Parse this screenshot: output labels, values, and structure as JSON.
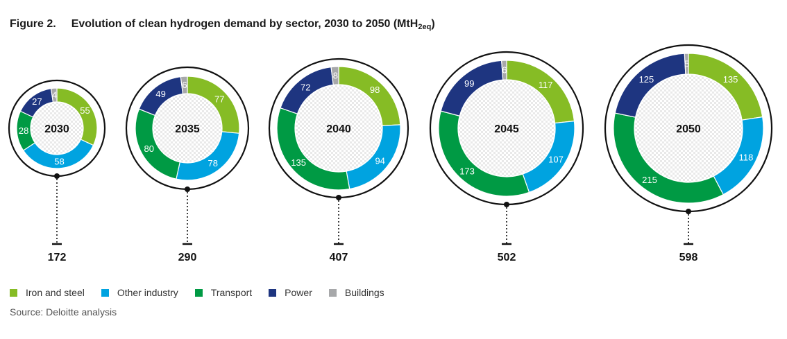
{
  "title": {
    "figure_label": "Figure 2.",
    "text": "Evolution of clean hydrogen demand by sector, 2030 to 2050 (MtH",
    "subscript": "2eq",
    "suffix": ")"
  },
  "source": "Source: Deloitte analysis",
  "chart_data": {
    "type": "donut",
    "sectors": [
      {
        "name": "Iron and steel",
        "color": "#86bc25"
      },
      {
        "name": "Other industry",
        "color": "#00a3e0"
      },
      {
        "name": "Transport",
        "color": "#009a44"
      },
      {
        "name": "Power",
        "color": "#1e3580"
      },
      {
        "name": "Buildings",
        "color": "#a7a8aa"
      }
    ],
    "years": [
      {
        "year": "2030",
        "total": "172",
        "values": [
          55,
          58,
          28,
          27,
          4
        ]
      },
      {
        "year": "2035",
        "total": "290",
        "values": [
          77,
          78,
          80,
          49,
          6
        ]
      },
      {
        "year": "2040",
        "total": "407",
        "values": [
          98,
          94,
          135,
          72,
          8
        ]
      },
      {
        "year": "2045",
        "total": "502",
        "values": [
          117,
          107,
          173,
          99,
          6
        ]
      },
      {
        "year": "2050",
        "total": "598",
        "values": [
          135,
          118,
          215,
          125,
          5
        ]
      }
    ]
  }
}
